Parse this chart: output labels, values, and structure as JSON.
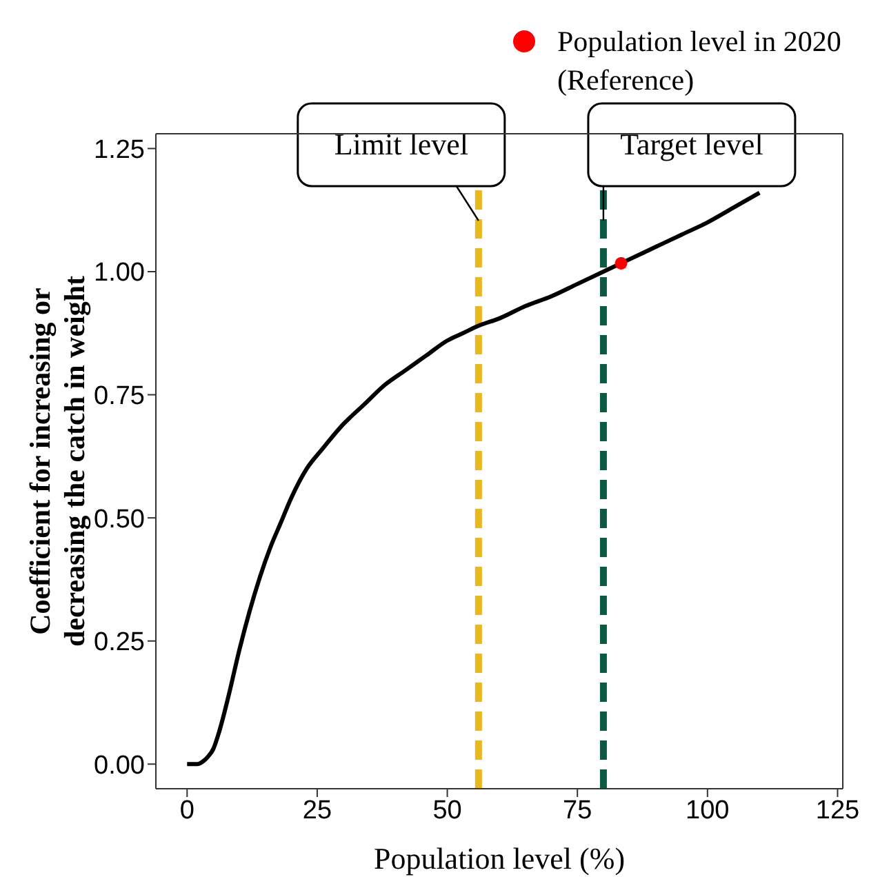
{
  "chart_data": {
    "type": "line",
    "xlabel": "Population level (%)",
    "ylabel": "Coefficient for increasing or decreasing the catch in weight",
    "xlim": [
      -6,
      126
    ],
    "ylim": [
      -0.05,
      1.28
    ],
    "xticks": [
      0,
      25,
      50,
      75,
      100,
      125
    ],
    "yticks": [
      {
        "value": 0,
        "label": "0.00"
      },
      {
        "value": 0.25,
        "label": "0.25"
      },
      {
        "value": 0.5,
        "label": "0.50"
      },
      {
        "value": 0.75,
        "label": "0.75"
      },
      {
        "value": 1,
        "label": "1.00"
      },
      {
        "value": 1.25,
        "label": "1.25"
      }
    ],
    "grid": false,
    "legend": "top right",
    "marker": "none",
    "line_style": "solid",
    "series": [
      {
        "type": "line",
        "color": "#000000",
        "x": [
          0,
          2,
          3,
          4,
          5,
          6,
          8,
          10,
          12,
          14,
          16,
          18,
          20,
          23,
          26,
          30,
          34,
          38,
          42,
          46,
          50,
          53,
          56,
          60,
          65,
          70,
          75,
          80,
          85,
          90,
          95,
          100,
          105,
          110
        ],
        "values": [
          0,
          0,
          0.005,
          0.015,
          0.03,
          0.06,
          0.14,
          0.23,
          0.31,
          0.38,
          0.44,
          0.49,
          0.54,
          0.6,
          0.64,
          0.69,
          0.73,
          0.77,
          0.8,
          0.83,
          0.86,
          0.875,
          0.89,
          0.905,
          0.93,
          0.95,
          0.975,
          1.0,
          1.025,
          1.05,
          1.075,
          1.1,
          1.13,
          1.16
        ]
      },
      {
        "type": "scatter",
        "name": "Population level in 2020 (Reference)",
        "color": "#ff0000",
        "marker": "circle",
        "x": [
          83.4
        ],
        "values": [
          1.017
        ]
      }
    ],
    "ref_lines": [
      {
        "axis": "x",
        "value": 56,
        "label": "Limit level",
        "color": "#e9b81c",
        "line_style": "dashed"
      },
      {
        "axis": "x",
        "value": 80,
        "label": "Target level",
        "color": "#0d5a44",
        "line_style": "dashed"
      }
    ]
  }
}
